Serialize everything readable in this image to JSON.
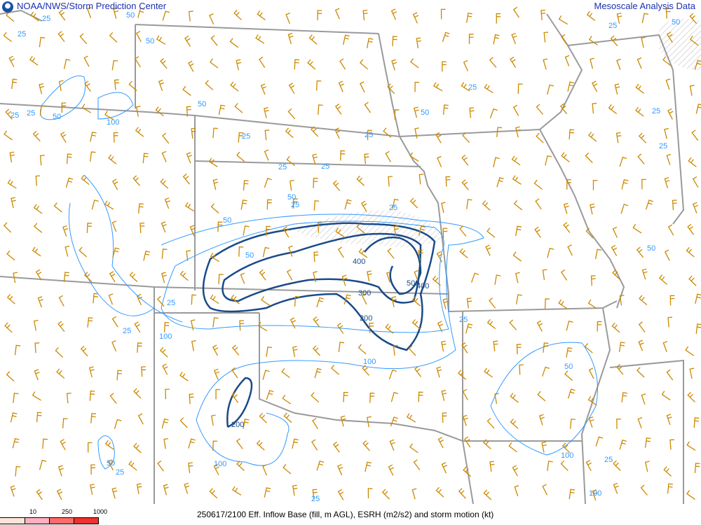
{
  "header": {
    "left_title": "NOAA/NWS/Storm Prediction Center",
    "right_title": "Mesoscale Analysis Data",
    "logo": "noaa-logo"
  },
  "footer": {
    "caption": "250617/2100 Eff. Inflow Base (fill, m AGL), ESRH (m2/s2) and storm motion (kt)",
    "legend": {
      "labels": [
        "10",
        "250",
        "1000"
      ],
      "colors": [
        "#fce4d8",
        "#ffb0c0",
        "#ff6b6b",
        "#ee3030"
      ]
    }
  },
  "map": {
    "colors": {
      "borders": "#9a9a9a",
      "contour_light": "#3399ff",
      "contour_dark": "#1a4a88",
      "wind_barbs": "#cc8800"
    },
    "contour_labels": [
      "25",
      "50",
      "25",
      "50",
      "25",
      "50",
      "100",
      "50",
      "25",
      "25",
      "25",
      "50",
      "25",
      "25",
      "25",
      "25",
      "50",
      "25",
      "50",
      "25",
      "50",
      "50",
      "400",
      "300",
      "200",
      "500",
      "400",
      "25",
      "100",
      "100",
      "25",
      "25",
      "50",
      "100",
      "200",
      "100",
      "50",
      "25",
      "25",
      "100",
      "25",
      "25",
      "50",
      "25"
    ]
  }
}
